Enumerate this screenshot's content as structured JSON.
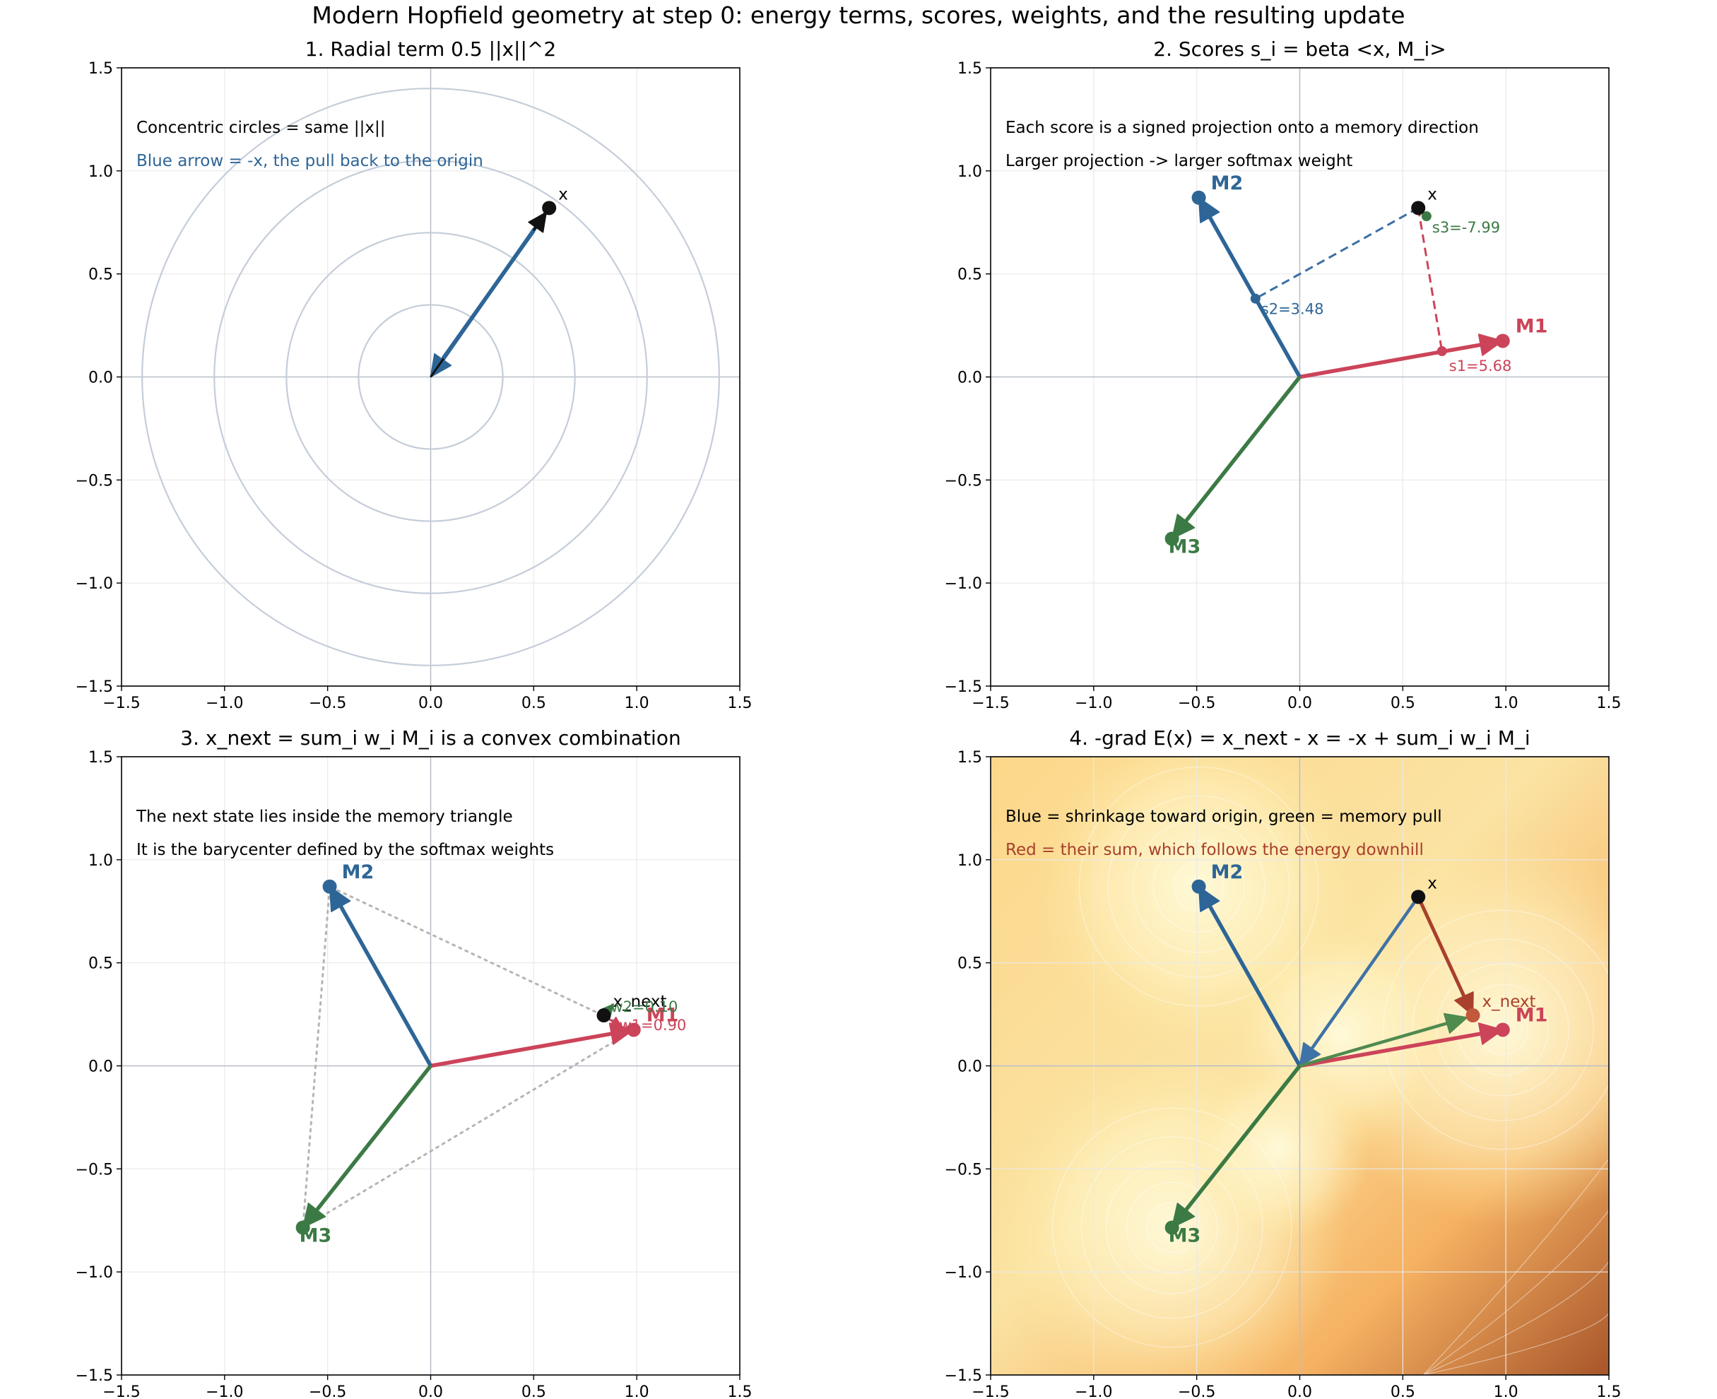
{
  "figure": {
    "title": "Modern Hopfield geometry at step 0: energy terms, scores, weights, and the resulting update"
  },
  "colors": {
    "m1": "#cc4459",
    "m2": "#2e6597",
    "m3": "#3c7a45",
    "x": "#111111",
    "pull": "#2e6597",
    "sum": "#a8402d",
    "circles": "#c5cdd9",
    "grid": "#e9e9e9",
    "dashed_m2": "#3b6fa3",
    "dashed_m1": "#cc4459"
  },
  "chart_data": [
    {
      "type": "scatter",
      "title": "1. Radial term 0.5 ||x||^2",
      "xlim": [
        -1.5,
        1.5
      ],
      "ylim": [
        -1.5,
        1.5
      ],
      "grid": true,
      "xticks": [
        -1.5,
        -1.0,
        -0.5,
        0.0,
        0.5,
        1.0,
        1.5
      ],
      "yticks": [
        -1.5,
        -1.0,
        -0.5,
        0.0,
        0.5,
        1.0,
        1.5
      ],
      "points": [
        {
          "name": "x",
          "x": 0.575,
          "y": 0.82,
          "label": "x"
        }
      ],
      "circles_radii": [
        0.35,
        0.7,
        1.05,
        1.4
      ],
      "vectors": [
        {
          "from": [
            0.575,
            0.82
          ],
          "to": [
            0.0,
            0.0
          ],
          "role": "pull",
          "label": "-x"
        }
      ],
      "annotations": [
        "Concentric circles = same ||x||",
        "Blue arrow = -x, the pull back to the origin"
      ]
    },
    {
      "type": "scatter",
      "title": "2. Scores s_i = beta <x, M_i>",
      "xlim": [
        -1.5,
        1.5
      ],
      "ylim": [
        -1.5,
        1.5
      ],
      "grid": true,
      "xticks": [
        -1.5,
        -1.0,
        -0.5,
        0.0,
        0.5,
        1.0,
        1.5
      ],
      "yticks": [
        -1.5,
        -1.0,
        -0.5,
        0.0,
        0.5,
        1.0,
        1.5
      ],
      "memories": [
        {
          "name": "M1",
          "x": 0.985,
          "y": 0.175
        },
        {
          "name": "M2",
          "x": -0.49,
          "y": 0.87
        },
        {
          "name": "M3",
          "x": -0.62,
          "y": -0.785
        }
      ],
      "points": [
        {
          "name": "x",
          "x": 0.575,
          "y": 0.82,
          "label": "x"
        }
      ],
      "projections": [
        {
          "memory": "M1",
          "foot": [
            0.69,
            0.125
          ],
          "label": "s1=5.68",
          "score": 5.68
        },
        {
          "memory": "M2",
          "foot": [
            -0.215,
            0.38
          ],
          "label": "s2=3.48",
          "score": 3.48
        },
        {
          "memory": "M3",
          "foot": [
            0.615,
            0.78
          ],
          "label": "s3=-7.99",
          "score": -7.99
        }
      ],
      "annotations": [
        "Each score is a signed projection onto a memory direction",
        "Larger projection -> larger softmax weight"
      ]
    },
    {
      "type": "scatter",
      "title": "3. x_next = sum_i w_i M_i is a convex combination",
      "xlim": [
        -1.5,
        1.5
      ],
      "ylim": [
        -1.5,
        1.5
      ],
      "grid": true,
      "xticks": [
        -1.5,
        -1.0,
        -0.5,
        0.0,
        0.5,
        1.0,
        1.5
      ],
      "yticks": [
        -1.5,
        -1.0,
        -0.5,
        0.0,
        0.5,
        1.0,
        1.5
      ],
      "memories": [
        {
          "name": "M1",
          "x": 0.985,
          "y": 0.175
        },
        {
          "name": "M2",
          "x": -0.49,
          "y": 0.87
        },
        {
          "name": "M3",
          "x": -0.62,
          "y": -0.785
        }
      ],
      "points": [
        {
          "name": "x_next",
          "x": 0.84,
          "y": 0.245,
          "label": "x_next"
        }
      ],
      "weights": [
        {
          "memory": "M1",
          "label": "w1=0.90",
          "value": 0.9
        },
        {
          "memory": "M2",
          "label": "w2=0.10",
          "value": 0.1
        }
      ],
      "annotations": [
        "The next state lies inside the memory triangle",
        "It is the barycenter defined by the softmax weights"
      ]
    },
    {
      "type": "heatmap",
      "title": "4. -grad E(x) = x_next - x = -x + sum_i w_i M_i",
      "xlim": [
        -1.5,
        1.5
      ],
      "ylim": [
        -1.5,
        1.5
      ],
      "grid": true,
      "xticks": [
        -1.5,
        -1.0,
        -0.5,
        0.0,
        0.5,
        1.0,
        1.5
      ],
      "yticks": [
        -1.5,
        -1.0,
        -0.5,
        0.0,
        0.5,
        1.0,
        1.5
      ],
      "memories": [
        {
          "name": "M1",
          "x": 0.985,
          "y": 0.175
        },
        {
          "name": "M2",
          "x": -0.49,
          "y": 0.87
        },
        {
          "name": "M3",
          "x": -0.62,
          "y": -0.785
        }
      ],
      "points": [
        {
          "name": "x",
          "x": 0.575,
          "y": 0.82,
          "label": "x"
        },
        {
          "name": "x_next",
          "x": 0.84,
          "y": 0.245,
          "label": "x_next"
        }
      ],
      "vectors": [
        {
          "from": [
            0.575,
            0.82
          ],
          "to": [
            0.0,
            0.0
          ],
          "role": "shrinkage"
        },
        {
          "from": [
            0.0,
            0.0
          ],
          "to": [
            0.84,
            0.245
          ],
          "role": "memory-pull"
        },
        {
          "from": [
            0.575,
            0.82
          ],
          "to": [
            0.84,
            0.245
          ],
          "role": "sum"
        }
      ],
      "annotations": [
        "Blue = shrinkage toward origin, green = memory pull",
        "Red = their sum, which follows the energy downhill"
      ]
    }
  ]
}
